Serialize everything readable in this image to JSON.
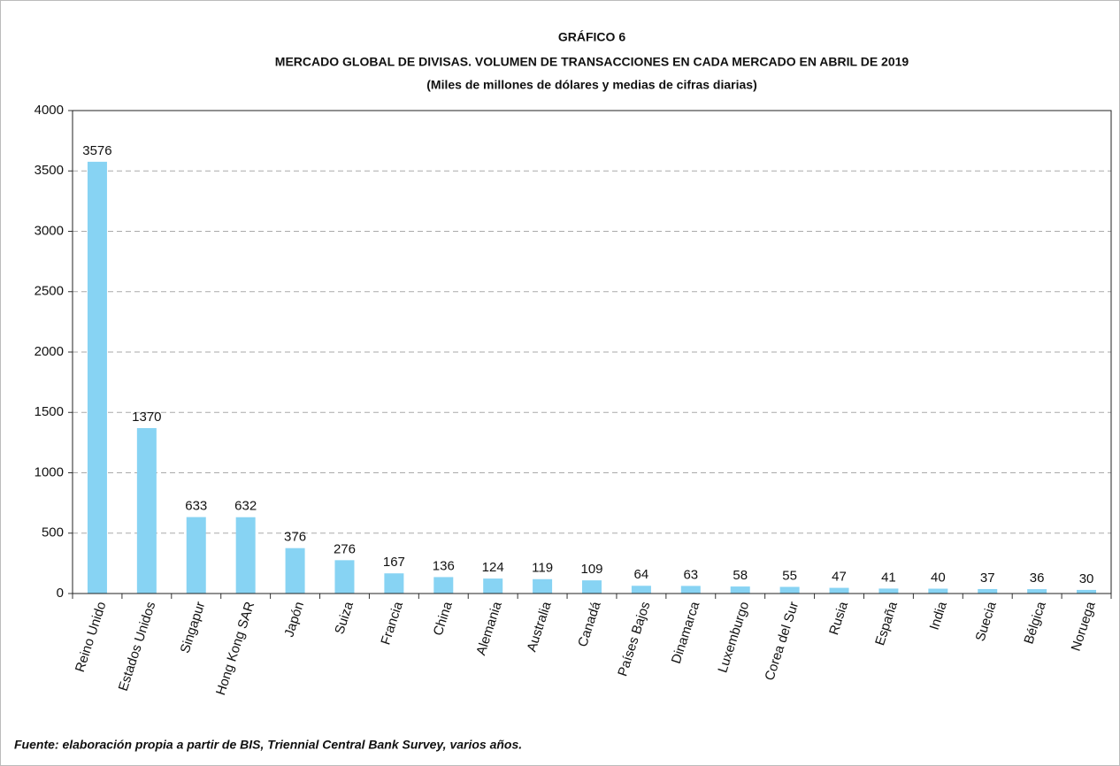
{
  "chart_data": {
    "type": "bar",
    "title": "GRÁFICO 6",
    "subtitle": "MERCADO GLOBAL DE DIVISAS. VOLUMEN DE TRANSACCIONES EN CADA MERCADO EN ABRIL DE 2019",
    "note": "(Miles de millones de dólares y medias de cifras diarias)",
    "categories": [
      "Reino Unido",
      "Estados Unidos",
      "Singapur",
      "Hong Kong SAR",
      "Japón",
      "Suiza",
      "Francia",
      "China",
      "Alemania",
      "Australia",
      "Canadá",
      "Países Bajos",
      "Dinamarca",
      "Luxemburgo",
      "Corea del Sur",
      "Rusia",
      "España",
      "India",
      "Suecia",
      "Bélgica",
      "Noruega"
    ],
    "values": [
      3576,
      1370,
      633,
      632,
      376,
      276,
      167,
      136,
      124,
      119,
      109,
      64,
      63,
      58,
      55,
      47,
      41,
      40,
      37,
      36,
      30
    ],
    "color": "#87d3f3",
    "ylim": [
      0,
      4000
    ],
    "yticks": [
      0,
      500,
      1000,
      1500,
      2000,
      2500,
      3000,
      3500,
      4000
    ],
    "grid": true,
    "source": "Fuente: elaboración propia a partir de BIS, Triennial Central Bank Survey, varios años."
  }
}
